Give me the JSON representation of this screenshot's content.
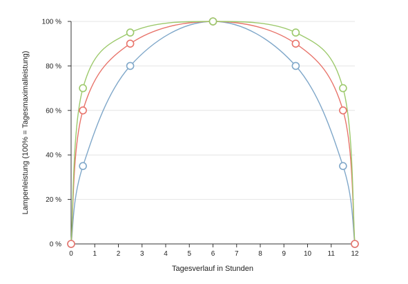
{
  "chart_data": {
    "type": "line",
    "title": "",
    "xlabel": "Tagesverlauf in Stunden",
    "ylabel": "Lampenleistung (100% = Tagesmaximalleistung)",
    "xlim": [
      0,
      12
    ],
    "ylim": [
      0,
      100
    ],
    "x_ticks": [
      0,
      1,
      2,
      3,
      4,
      5,
      6,
      7,
      8,
      9,
      10,
      11,
      12
    ],
    "y_ticks": [
      0,
      20,
      40,
      60,
      80,
      100
    ],
    "y_tick_labels": [
      "0 %",
      "20 %",
      "40 %",
      "60 %",
      "80 %",
      "100 %"
    ],
    "grid": true,
    "legend": "none",
    "series": [
      {
        "color": "#7fa7c9",
        "markers": [
          {
            "x": 0,
            "y": 0
          },
          {
            "x": 0.5,
            "y": 35
          },
          {
            "x": 2.5,
            "y": 80
          },
          {
            "x": 6,
            "y": 100
          },
          {
            "x": 9.5,
            "y": 80
          },
          {
            "x": 11.5,
            "y": 35
          },
          {
            "x": 12,
            "y": 0
          }
        ]
      },
      {
        "color": "#e8736a",
        "markers": [
          {
            "x": 0,
            "y": 0
          },
          {
            "x": 0.5,
            "y": 60
          },
          {
            "x": 2.5,
            "y": 90
          },
          {
            "x": 6,
            "y": 100
          },
          {
            "x": 9.5,
            "y": 90
          },
          {
            "x": 11.5,
            "y": 60
          },
          {
            "x": 12,
            "y": 0
          }
        ]
      },
      {
        "color": "#9cc96b",
        "markers": [
          {
            "x": 0.5,
            "y": 70
          },
          {
            "x": 2.5,
            "y": 95
          },
          {
            "x": 6,
            "y": 100
          },
          {
            "x": 9.5,
            "y": 95
          },
          {
            "x": 11.5,
            "y": 70
          }
        ]
      }
    ]
  }
}
